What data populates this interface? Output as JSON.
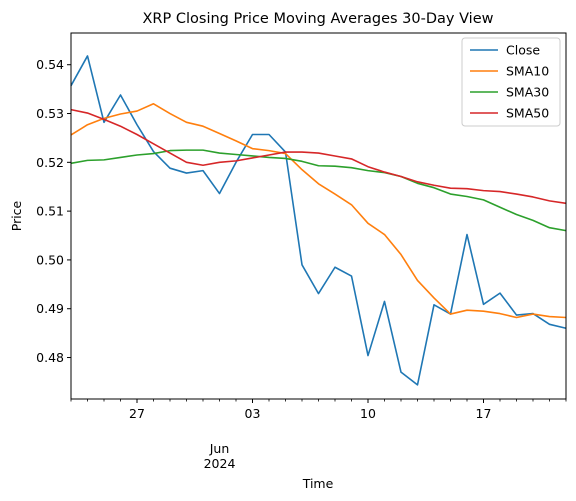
{
  "chart_data": {
    "type": "line",
    "title": "XRP Closing Price Moving Averages 30-Day View",
    "xlabel": "Time",
    "ylabel": "Price",
    "x": [
      "2024-05-23",
      "2024-05-24",
      "2024-05-25",
      "2024-05-26",
      "2024-05-27",
      "2024-05-28",
      "2024-05-29",
      "2024-05-30",
      "2024-05-31",
      "2024-06-01",
      "2024-06-02",
      "2024-06-03",
      "2024-06-04",
      "2024-06-05",
      "2024-06-06",
      "2024-06-07",
      "2024-06-08",
      "2024-06-09",
      "2024-06-10",
      "2024-06-11",
      "2024-06-12",
      "2024-06-13",
      "2024-06-14",
      "2024-06-15",
      "2024-06-16",
      "2024-06-17",
      "2024-06-18",
      "2024-06-19",
      "2024-06-20",
      "2024-06-21",
      "2024-06-22"
    ],
    "xlim": [
      "2024-05-23",
      "2024-06-22"
    ],
    "ylim": [
      0.4715,
      0.5465
    ],
    "y_ticks": [
      0.48,
      0.49,
      0.5,
      0.51,
      0.52,
      0.53,
      0.54
    ],
    "y_tick_labels": [
      "0.48",
      "0.49",
      "0.50",
      "0.51",
      "0.52",
      "0.53",
      "0.54"
    ],
    "x_ticks": [
      {
        "date": "2024-05-27",
        "label": "27"
      },
      {
        "date": "2024-06-03",
        "label": "03"
      },
      {
        "date": "2024-06-10",
        "label": "10"
      },
      {
        "date": "2024-06-17",
        "label": "17"
      }
    ],
    "x_minor_ticks": [
      "2024-05-23",
      "2024-05-24",
      "2024-05-25",
      "2024-05-26",
      "2024-05-28",
      "2024-05-29",
      "2024-05-30",
      "2024-05-31",
      "2024-06-01",
      "2024-06-02",
      "2024-06-04",
      "2024-06-05",
      "2024-06-06",
      "2024-06-07",
      "2024-06-08",
      "2024-06-09",
      "2024-06-11",
      "2024-06-12",
      "2024-06-13",
      "2024-06-14",
      "2024-06-15",
      "2024-06-16",
      "2024-06-18",
      "2024-06-19",
      "2024-06-20",
      "2024-06-21",
      "2024-06-22"
    ],
    "x_secondary_label": {
      "date": "2024-06-01",
      "month": "Jun",
      "year": "2024"
    },
    "grid": false,
    "legend_position": "top-right",
    "series": [
      {
        "name": "Close",
        "color": "#1f77b4",
        "values": [
          0.5357,
          0.5418,
          0.5282,
          0.5338,
          0.5277,
          0.5222,
          0.5188,
          0.5178,
          0.5183,
          0.5136,
          0.52,
          0.5257,
          0.5257,
          0.5221,
          0.499,
          0.4931,
          0.4985,
          0.4967,
          0.4804,
          0.4915,
          0.477,
          0.4744,
          0.4908,
          0.4889,
          0.5052,
          0.4909,
          0.4932,
          0.4887,
          0.489,
          0.4868,
          0.486
        ]
      },
      {
        "name": "SMA10",
        "color": "#ff7f0e",
        "values": [
          0.5256,
          0.5277,
          0.529,
          0.5299,
          0.5305,
          0.532,
          0.53,
          0.5282,
          0.5274,
          0.5259,
          0.5244,
          0.5228,
          0.5224,
          0.5218,
          0.5185,
          0.5156,
          0.5135,
          0.5113,
          0.5075,
          0.5052,
          0.5011,
          0.4958,
          0.4922,
          0.4889,
          0.4897,
          0.4895,
          0.489,
          0.4882,
          0.4889,
          0.4884,
          0.4882
        ]
      },
      {
        "name": "SMA30",
        "color": "#2ca02c",
        "values": [
          0.5198,
          0.5204,
          0.5205,
          0.521,
          0.5215,
          0.5218,
          0.5224,
          0.5225,
          0.5225,
          0.5219,
          0.5216,
          0.5213,
          0.521,
          0.5208,
          0.5202,
          0.5193,
          0.5192,
          0.5189,
          0.5183,
          0.5179,
          0.5171,
          0.5157,
          0.5148,
          0.5135,
          0.513,
          0.5123,
          0.5108,
          0.5093,
          0.5081,
          0.5066,
          0.506
        ]
      },
      {
        "name": "SMA50",
        "color": "#d62728",
        "values": [
          0.5308,
          0.5301,
          0.5288,
          0.5274,
          0.5257,
          0.5238,
          0.5219,
          0.52,
          0.5194,
          0.52,
          0.5203,
          0.5209,
          0.5215,
          0.5221,
          0.5221,
          0.5219,
          0.5213,
          0.5207,
          0.5191,
          0.518,
          0.5171,
          0.516,
          0.5153,
          0.5147,
          0.5146,
          0.5142,
          0.514,
          0.5135,
          0.5129,
          0.5121,
          0.5116
        ]
      }
    ]
  }
}
